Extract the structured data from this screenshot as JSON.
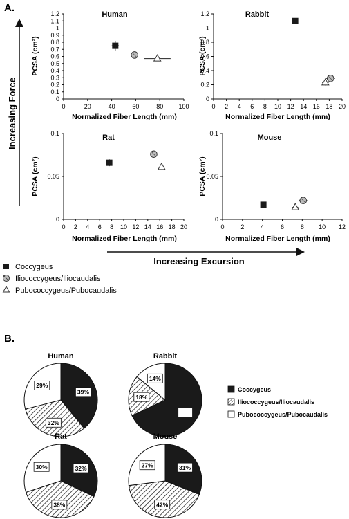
{
  "panels": {
    "a_label": "A.",
    "b_label": "B."
  },
  "arrows": {
    "force_label": "Increasing Force",
    "excursion_label": "Increasing Excursion"
  },
  "colors": {
    "marker_fill": "#1a1a1a",
    "circle_fill": "#bdbdbd",
    "triangle_fill": "#ffffff",
    "pie_black": "#1a1a1a",
    "pie_white": "#ffffff"
  },
  "scatter_legend": [
    {
      "label": "Coccygeus",
      "marker": "square"
    },
    {
      "label": "Iliococcygeus/Iliocaudalis",
      "marker": "circle"
    },
    {
      "label": "Pubococcygeus/Pubocaudalis",
      "marker": "triangle"
    }
  ],
  "pie_legend": [
    {
      "label": "Coccygeus",
      "pattern": "black"
    },
    {
      "label": "Iliococcygeus/Iliocaudalis",
      "pattern": "hatch"
    },
    {
      "label": "Pubococcygeus/Pubocaudalis",
      "pattern": "white"
    }
  ],
  "chart_data": [
    {
      "type": "scatter",
      "title": "Human",
      "xlabel": "Normalized Fiber Length (mm)",
      "ylabel": "PCSA (cm²)",
      "xlim": [
        0,
        100
      ],
      "ylim": [
        0,
        1.2
      ],
      "xticks": [
        0,
        20,
        40,
        60,
        80,
        100
      ],
      "yticks": [
        0,
        0.1,
        0.2,
        0.3,
        0.4,
        0.5,
        0.6,
        0.7,
        0.8,
        0.9,
        1,
        1.1,
        1.2
      ],
      "points": [
        {
          "marker": "square",
          "x": 43,
          "y": 0.75,
          "xerr": 3,
          "yerr": 0.07
        },
        {
          "marker": "circle",
          "x": 59,
          "y": 0.62,
          "xerr": 5,
          "yerr": 0.02
        },
        {
          "marker": "triangle",
          "x": 78,
          "y": 0.57,
          "xerr": 11,
          "yerr": 0.03
        }
      ]
    },
    {
      "type": "scatter",
      "title": "Rabbit",
      "xlabel": "Normalized Fiber Length (mm)",
      "ylabel": "PCSA (cm²)",
      "xlim": [
        0,
        20
      ],
      "ylim": [
        0,
        1.2
      ],
      "xticks": [
        0,
        2,
        4,
        6,
        8,
        10,
        12,
        14,
        16,
        18,
        20
      ],
      "yticks": [
        0,
        0.2,
        0.4,
        0.6,
        0.8,
        1.0,
        1.2
      ],
      "points": [
        {
          "marker": "square",
          "x": 12.7,
          "y": 1.1,
          "xerr": 0.4,
          "yerr": 0.04
        },
        {
          "marker": "circle",
          "x": 18.2,
          "y": 0.29,
          "xerr": 0.7,
          "yerr": 0.03
        },
        {
          "marker": "triangle",
          "x": 17.4,
          "y": 0.23,
          "xerr": 0.5,
          "yerr": 0.04
        }
      ]
    },
    {
      "type": "scatter",
      "title": "Rat",
      "xlabel": "Normalized Fiber Length (mm)",
      "ylabel": "PCSA (cm²)",
      "xlim": [
        0,
        20
      ],
      "ylim": [
        0,
        0.1
      ],
      "xticks": [
        0,
        2,
        4,
        6,
        8,
        10,
        12,
        14,
        16,
        18,
        20
      ],
      "yticks": [
        0,
        0.05,
        0.1
      ],
      "points": [
        {
          "marker": "square",
          "x": 7.6,
          "y": 0.066,
          "xerr": 0.3,
          "yerr": 0.004
        },
        {
          "marker": "circle",
          "x": 15,
          "y": 0.076,
          "xerr": 0.5,
          "yerr": 0.002
        },
        {
          "marker": "triangle",
          "x": 16.3,
          "y": 0.061,
          "xerr": 0.4,
          "yerr": 0.003
        }
      ]
    },
    {
      "type": "scatter",
      "title": "Mouse",
      "xlabel": "Normalized Fiber Length (mm)",
      "ylabel": "PCSA (cm²)",
      "xlim": [
        0,
        12
      ],
      "ylim": [
        0,
        0.1
      ],
      "xticks": [
        0,
        2,
        4,
        6,
        8,
        10,
        12
      ],
      "yticks": [
        0,
        0.05,
        0.1
      ],
      "points": [
        {
          "marker": "square",
          "x": 4.1,
          "y": 0.017,
          "xerr": 0.2,
          "yerr": 0.002
        },
        {
          "marker": "circle",
          "x": 8.1,
          "y": 0.022,
          "xerr": 0.4,
          "yerr": 0.002
        },
        {
          "marker": "triangle",
          "x": 7.3,
          "y": 0.014,
          "xerr": 0.3,
          "yerr": 0.002
        }
      ]
    },
    {
      "type": "pie",
      "title": "Human",
      "slices": [
        {
          "pattern": "black",
          "value": 39,
          "label": "39%"
        },
        {
          "pattern": "hatch",
          "value": 32,
          "label": "32%"
        },
        {
          "pattern": "white",
          "value": 29,
          "label": "29%"
        }
      ]
    },
    {
      "type": "pie",
      "title": "Rabbit",
      "slices": [
        {
          "pattern": "black",
          "value": 68,
          "label": ""
        },
        {
          "pattern": "hatch",
          "value": 18,
          "label": "18%"
        },
        {
          "pattern": "white",
          "value": 14,
          "label": "14%"
        }
      ]
    },
    {
      "type": "pie",
      "title": "Rat",
      "slices": [
        {
          "pattern": "black",
          "value": 32,
          "label": "32%"
        },
        {
          "pattern": "hatch",
          "value": 38,
          "label": "38%"
        },
        {
          "pattern": "white",
          "value": 30,
          "label": "30%"
        }
      ]
    },
    {
      "type": "pie",
      "title": "Mouse",
      "slices": [
        {
          "pattern": "black",
          "value": 31,
          "label": "31%"
        },
        {
          "pattern": "hatch",
          "value": 42,
          "label": "42%"
        },
        {
          "pattern": "white",
          "value": 27,
          "label": "27%"
        }
      ]
    }
  ]
}
